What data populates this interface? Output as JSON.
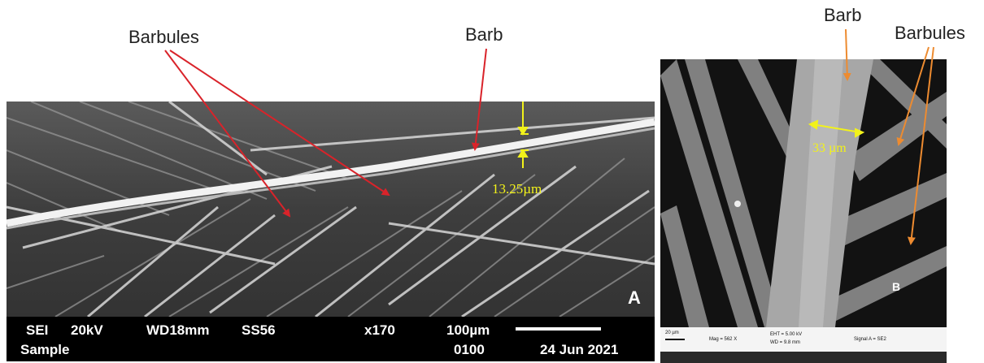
{
  "annotations": {
    "barbules_left": "Barbules",
    "barb_left": "Barb",
    "barb_right": "Barb",
    "barbules_right": "Barbules"
  },
  "colors": {
    "arrow_left": "#d9232a",
    "arrow_right": "#ed8b30",
    "measurement": "#f2f21a"
  },
  "panel_a": {
    "letter": "A",
    "measurement": "13.25µm",
    "info": {
      "detector": "SEI",
      "voltage": "20kV",
      "working_distance": "WD18mm",
      "spot_size": "SS56",
      "magnification": "x170",
      "scale": "100µm",
      "label": "Sample",
      "image_number": "0100",
      "date": "24 Jun 2021"
    }
  },
  "panel_b": {
    "letter": "B",
    "measurement": "33 µm",
    "info": {
      "scale": "20 µm",
      "magnification": "Mag = 562 X",
      "eht": "EHT = 5.00 kV",
      "wd": "WD = 9.8 mm",
      "signal": "Signal A = SE2"
    }
  }
}
